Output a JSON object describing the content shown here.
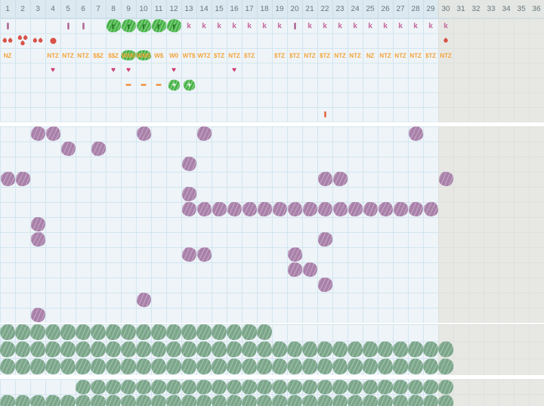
{
  "columns": [
    "1",
    "2",
    "3",
    "4",
    "5",
    "6",
    "7",
    "8",
    "9",
    "10",
    "11",
    "12",
    "13",
    "14",
    "15",
    "16",
    "17",
    "18",
    "19",
    "20",
    "21",
    "22",
    "23",
    "24",
    "25",
    "26",
    "27",
    "28",
    "29",
    "30",
    "31",
    "32",
    "33",
    "34",
    "35",
    "36"
  ],
  "gray_start_col": 30,
  "glyphs": {
    "k": "k",
    "r": "r",
    "heart": "♥",
    "plus": "+"
  },
  "colors": {
    "header_bg": "#dde9f1",
    "body_bg": "#eef4f8",
    "gridline": "#d0e3ee",
    "gray_bg": "#e7e8e4",
    "purple_blob": "#a980a9",
    "green_blob": "#7ba68a",
    "bright_green": "#47b347",
    "pink_letter": "#c4679b",
    "mauve_bar": "#b4719f",
    "red_drop": "#d95348",
    "heart_pink": "#d23f76",
    "orange_code": "#f3a43a",
    "orange_tick": "#e2714b"
  },
  "top_rows": [
    {
      "name": "marks",
      "cells": [
        {
          "col": 1,
          "t": "bar"
        },
        {
          "col": 5,
          "t": "bar"
        },
        {
          "col": 6,
          "t": "bar"
        },
        {
          "col": 8,
          "t": "rblock"
        },
        {
          "col": 9,
          "t": "rblock"
        },
        {
          "col": 10,
          "t": "rblock"
        },
        {
          "col": 11,
          "t": "rblock"
        },
        {
          "col": 12,
          "t": "rblock"
        },
        {
          "col": 13,
          "t": "k"
        },
        {
          "col": 14,
          "t": "k"
        },
        {
          "col": 15,
          "t": "k"
        },
        {
          "col": 16,
          "t": "k"
        },
        {
          "col": 17,
          "t": "k"
        },
        {
          "col": 18,
          "t": "k"
        },
        {
          "col": 19,
          "t": "k"
        },
        {
          "col": 20,
          "t": "bar"
        },
        {
          "col": 21,
          "t": "k"
        },
        {
          "col": 22,
          "t": "k"
        },
        {
          "col": 23,
          "t": "k"
        },
        {
          "col": 24,
          "t": "k"
        },
        {
          "col": 25,
          "t": "k"
        },
        {
          "col": 26,
          "t": "k"
        },
        {
          "col": 27,
          "t": "k"
        },
        {
          "col": 28,
          "t": "k"
        },
        {
          "col": 29,
          "t": "k"
        },
        {
          "col": 30,
          "t": "k"
        }
      ]
    },
    {
      "name": "drops",
      "cells": [
        {
          "col": 1,
          "t": "drops",
          "n": 2
        },
        {
          "col": 2,
          "t": "drops",
          "n": 3
        },
        {
          "col": 3,
          "t": "drops",
          "n": 2
        },
        {
          "col": 4,
          "t": "dot"
        },
        {
          "col": 30,
          "t": "drops",
          "n": 1
        }
      ]
    },
    {
      "name": "codes",
      "cells": [
        {
          "col": 1,
          "t": "code",
          "text": "NZ"
        },
        {
          "col": 4,
          "t": "code",
          "text": "NTZ"
        },
        {
          "col": 5,
          "t": "code",
          "text": "NTZ"
        },
        {
          "col": 6,
          "t": "code",
          "text": "NTZ"
        },
        {
          "col": 7,
          "t": "code",
          "text": "$$Z"
        },
        {
          "col": 8,
          "t": "code",
          "text": "$$Z"
        },
        {
          "col": 9,
          "t": "code",
          "text": "WM0",
          "green": true
        },
        {
          "col": 10,
          "t": "code",
          "text": "WM0",
          "green": true
        },
        {
          "col": 11,
          "t": "code",
          "text": "W$"
        },
        {
          "col": 12,
          "t": "code",
          "text": "W0"
        },
        {
          "col": 13,
          "t": "code",
          "text": "WT$"
        },
        {
          "col": 14,
          "t": "code",
          "text": "WTZ"
        },
        {
          "col": 15,
          "t": "code",
          "text": "$TZ"
        },
        {
          "col": 16,
          "t": "code",
          "text": "NTZ"
        },
        {
          "col": 17,
          "t": "code",
          "text": "$TZ"
        },
        {
          "col": 19,
          "t": "code",
          "text": "$TZ"
        },
        {
          "col": 20,
          "t": "code",
          "text": "$TZ"
        },
        {
          "col": 21,
          "t": "code",
          "text": "NTZ"
        },
        {
          "col": 22,
          "t": "code",
          "text": "$TZ"
        },
        {
          "col": 23,
          "t": "code",
          "text": "NTZ"
        },
        {
          "col": 24,
          "t": "code",
          "text": "NTZ"
        },
        {
          "col": 25,
          "t": "code",
          "text": "NZ"
        },
        {
          "col": 26,
          "t": "code",
          "text": "NTZ"
        },
        {
          "col": 27,
          "t": "code",
          "text": "NTZ"
        },
        {
          "col": 28,
          "t": "code",
          "text": "NTZ"
        },
        {
          "col": 29,
          "t": "code",
          "text": "$TZ"
        },
        {
          "col": 30,
          "t": "code",
          "text": "NTZ"
        }
      ]
    },
    {
      "name": "hearts",
      "cells": [
        {
          "col": 4,
          "t": "heart"
        },
        {
          "col": 8,
          "t": "heart"
        },
        {
          "col": 9,
          "t": "heart"
        },
        {
          "col": 12,
          "t": "heart"
        },
        {
          "col": 16,
          "t": "heart"
        }
      ]
    },
    {
      "name": "extras",
      "cells": [
        {
          "col": 9,
          "t": "dash"
        },
        {
          "col": 10,
          "t": "dash"
        },
        {
          "col": 11,
          "t": "dash"
        },
        {
          "col": 12,
          "t": "plus"
        },
        {
          "col": 13,
          "t": "plus"
        }
      ]
    },
    {
      "name": "empty",
      "cells": []
    },
    {
      "name": "tick",
      "cells": [
        {
          "col": 22,
          "t": "ibar"
        }
      ]
    }
  ],
  "middle_rows": [
    [
      3,
      4,
      10,
      14,
      28
    ],
    [
      5,
      7
    ],
    [
      13
    ],
    [
      1,
      2,
      22,
      23,
      30
    ],
    [
      13
    ],
    [
      13,
      14,
      15,
      16,
      17,
      18,
      19,
      20,
      21,
      22,
      23,
      24,
      25,
      26,
      27,
      28,
      29
    ],
    [
      3
    ],
    [
      3,
      22
    ],
    [
      13,
      14,
      20
    ],
    [
      20,
      21
    ],
    [
      22
    ],
    [
      10
    ],
    [
      3
    ]
  ],
  "green_section_a": [
    {
      "from": 1,
      "to": 18
    },
    {
      "from": 1,
      "to": 30
    },
    {
      "from": 1,
      "to": 30
    }
  ],
  "green_section_b": [
    {
      "from": 6,
      "to": 30
    },
    {
      "from": 1,
      "to": 30
    }
  ]
}
